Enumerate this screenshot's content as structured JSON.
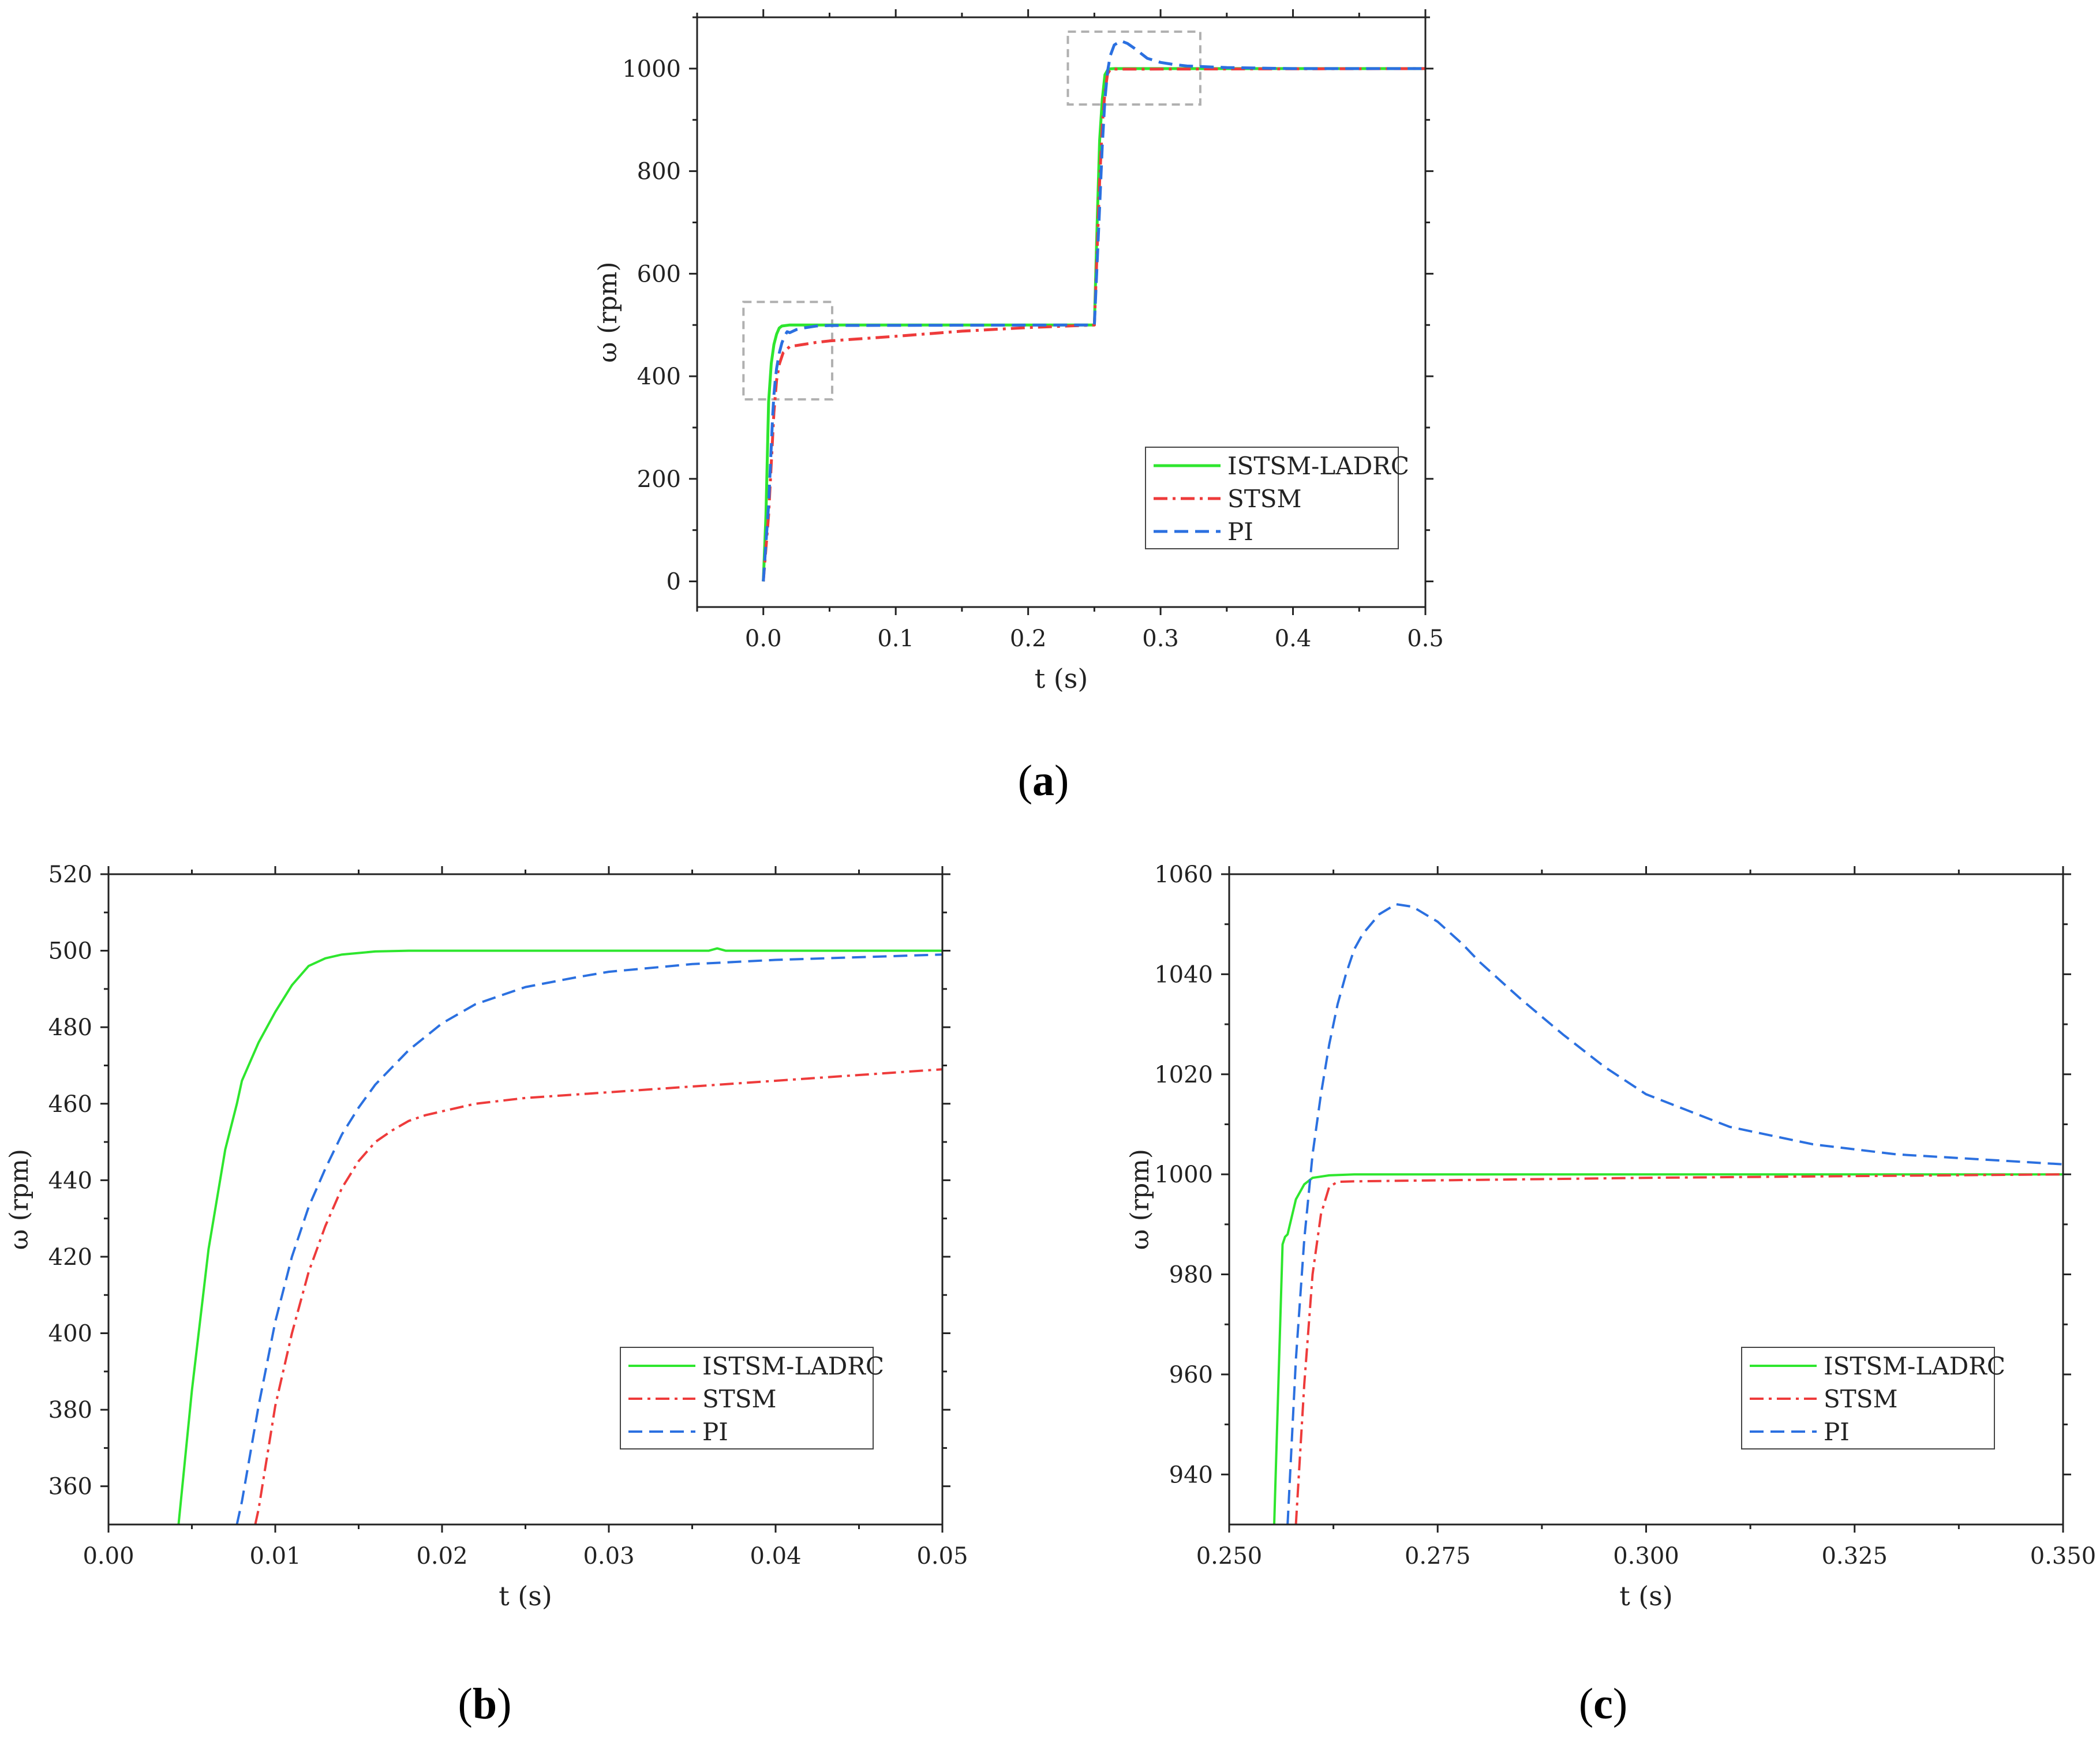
{
  "figure": {
    "captions": [
      {
        "letter": "a",
        "open": "(",
        "close": ")"
      },
      {
        "letter": "b",
        "open": "(",
        "close": ")"
      },
      {
        "letter": "c",
        "open": "(",
        "close": ")"
      }
    ]
  },
  "colors": {
    "ISTSM-LADRC": "#2EE62E",
    "STSM": "#EE3B3B",
    "PI": "#2B70E0",
    "axis": "#222222",
    "zoom_box": "#B0B0B0"
  },
  "chart_data": [
    {
      "id": "a",
      "type": "line",
      "title": "",
      "xlabel": "t (s)",
      "ylabel": "ω (rpm)",
      "xlim": [
        -0.05,
        0.5
      ],
      "ylim": [
        -50,
        1100
      ],
      "xticks": [
        0.0,
        0.1,
        0.2,
        0.3,
        0.4,
        0.5
      ],
      "xtick_labels": [
        "0.0",
        "0.1",
        "0.2",
        "0.3",
        "0.4",
        "0.5"
      ],
      "yticks": [
        0,
        200,
        400,
        600,
        800,
        1000
      ],
      "ytick_labels": [
        "0",
        "200",
        "400",
        "600",
        "800",
        "1000"
      ],
      "legend": {
        "placement": "lower-right",
        "entries": [
          "ISTSM-LADRC",
          "STSM",
          "PI"
        ]
      },
      "zoom_boxes": [
        {
          "x": [
            -0.015,
            0.052
          ],
          "y": [
            355,
            545
          ]
        },
        {
          "x": [
            0.23,
            0.33
          ],
          "y": [
            930,
            1072
          ]
        }
      ],
      "series": [
        {
          "name": "ISTSM-LADRC",
          "style": "solid",
          "x": [
            0,
            0.002,
            0.004,
            0.006,
            0.008,
            0.01,
            0.012,
            0.014,
            0.02,
            0.25,
            0.252,
            0.254,
            0.256,
            0.258,
            0.26,
            0.262,
            0.265,
            0.5
          ],
          "y": [
            0,
            130,
            350,
            425,
            462,
            482,
            494,
            498,
            500,
            500,
            690,
            860,
            940,
            988,
            997,
            999.5,
            1000,
            1000
          ]
        },
        {
          "name": "STSM",
          "style": "dashdot",
          "x": [
            0,
            0.004,
            0.008,
            0.01,
            0.012,
            0.015,
            0.02,
            0.025,
            0.03,
            0.04,
            0.05,
            0.1,
            0.15,
            0.2,
            0.25,
            0.252,
            0.254,
            0.256,
            0.258,
            0.26,
            0.262,
            0.265,
            0.5
          ],
          "y": [
            0,
            130,
            330,
            392,
            423,
            446,
            458,
            460,
            462,
            466,
            469,
            478,
            488,
            495,
            500,
            640,
            780,
            890,
            955,
            990,
            998,
            999,
            1000
          ]
        },
        {
          "name": "PI",
          "style": "dashed",
          "x": [
            0,
            0.004,
            0.007,
            0.008,
            0.009,
            0.01,
            0.012,
            0.014,
            0.016,
            0.018,
            0.02,
            0.025,
            0.03,
            0.035,
            0.04,
            0.05,
            0.25,
            0.254,
            0.256,
            0.258,
            0.26,
            0.262,
            0.265,
            0.27,
            0.275,
            0.28,
            0.29,
            0.3,
            0.31,
            0.32,
            0.33,
            0.34,
            0.35,
            0.4,
            0.5
          ],
          "y": [
            0,
            150,
            320,
            364,
            392,
            415,
            445,
            465,
            478,
            487,
            485,
            491,
            494,
            496,
            498,
            499,
            500,
            730,
            850,
            940,
            995,
            1025,
            1046,
            1054,
            1049,
            1040,
            1020,
            1012,
            1008,
            1005,
            1004,
            1003,
            1002,
            1000,
            1000
          ]
        }
      ]
    },
    {
      "id": "b",
      "type": "line",
      "title": "",
      "xlabel": "t (s)",
      "ylabel": "ω (rpm)",
      "xlim": [
        0.0,
        0.05
      ],
      "ylim": [
        350,
        520
      ],
      "xticks": [
        0.0,
        0.01,
        0.02,
        0.03,
        0.04,
        0.05
      ],
      "xtick_labels": [
        "0.00",
        "0.01",
        "0.02",
        "0.03",
        "0.04",
        "0.05"
      ],
      "yticks": [
        360,
        380,
        400,
        420,
        440,
        460,
        480,
        500,
        520
      ],
      "ytick_labels": [
        "360",
        "380",
        "400",
        "420",
        "440",
        "460",
        "480",
        "500",
        "520"
      ],
      "legend": {
        "placement": "lower-right",
        "entries": [
          "ISTSM-LADRC",
          "STSM",
          "PI"
        ]
      },
      "series": [
        {
          "name": "ISTSM-LADRC",
          "style": "solid",
          "x": [
            0.0042,
            0.005,
            0.006,
            0.007,
            0.0077,
            0.008,
            0.009,
            0.01,
            0.011,
            0.012,
            0.013,
            0.014,
            0.016,
            0.018,
            0.02,
            0.03,
            0.036,
            0.0365,
            0.037,
            0.04,
            0.05
          ],
          "y": [
            350,
            385,
            422,
            448,
            460,
            466,
            476,
            484,
            491,
            496,
            498,
            499,
            499.8,
            500,
            500,
            500,
            500,
            500.6,
            500,
            500,
            500
          ]
        },
        {
          "name": "STSM",
          "style": "dashdot",
          "x": [
            0.0088,
            0.009,
            0.01,
            0.011,
            0.012,
            0.013,
            0.014,
            0.015,
            0.016,
            0.017,
            0.018,
            0.019,
            0.02,
            0.022,
            0.025,
            0.03,
            0.035,
            0.04,
            0.045,
            0.05
          ],
          "y": [
            350,
            354,
            381,
            400,
            416,
            428,
            438,
            445,
            450,
            453,
            455.5,
            457,
            458,
            460,
            461.5,
            463,
            464.5,
            466,
            467.5,
            469
          ]
        },
        {
          "name": "PI",
          "style": "dashed",
          "x": [
            0.0077,
            0.008,
            0.009,
            0.01,
            0.011,
            0.012,
            0.013,
            0.014,
            0.015,
            0.016,
            0.018,
            0.02,
            0.022,
            0.025,
            0.028,
            0.03,
            0.035,
            0.04,
            0.045,
            0.05
          ],
          "y": [
            350,
            356,
            381,
            403,
            420,
            433,
            443,
            452,
            459,
            465,
            474,
            481,
            486,
            490.5,
            493,
            494.5,
            496.5,
            497.6,
            498.3,
            499
          ]
        }
      ]
    },
    {
      "id": "c",
      "type": "line",
      "title": "",
      "xlabel": "t (s)",
      "ylabel": "ω (rpm)",
      "xlim": [
        0.25,
        0.35
      ],
      "ylim": [
        930,
        1060
      ],
      "xticks": [
        0.25,
        0.275,
        0.3,
        0.325,
        0.35
      ],
      "xtick_labels": [
        "0.250",
        "0.275",
        "0.300",
        "0.325",
        "0.350"
      ],
      "yticks": [
        940,
        960,
        980,
        1000,
        1020,
        1040,
        1060
      ],
      "ytick_labels": [
        "940",
        "960",
        "980",
        "1000",
        "1020",
        "1040",
        "1060"
      ],
      "legend": {
        "placement": "lower-right",
        "entries": [
          "ISTSM-LADRC",
          "STSM",
          "PI"
        ]
      },
      "series": [
        {
          "name": "ISTSM-LADRC",
          "style": "solid",
          "x": [
            0.2554,
            0.2564,
            0.2567,
            0.257,
            0.258,
            0.259,
            0.26,
            0.262,
            0.265,
            0.27,
            0.3,
            0.35
          ],
          "y": [
            930,
            986,
            987.5,
            988,
            995,
            998,
            999.3,
            999.8,
            1000,
            1000,
            1000,
            1000
          ]
        },
        {
          "name": "STSM",
          "style": "dashdot",
          "x": [
            0.258,
            0.259,
            0.26,
            0.261,
            0.262,
            0.263,
            0.265,
            0.27,
            0.28,
            0.29,
            0.3,
            0.35
          ],
          "y": [
            930,
            958,
            980,
            992,
            997.5,
            998.5,
            998.6,
            998.7,
            998.9,
            999.1,
            999.3,
            1000
          ]
        },
        {
          "name": "PI",
          "style": "dashed",
          "x": [
            0.257,
            0.258,
            0.259,
            0.26,
            0.261,
            0.262,
            0.263,
            0.264,
            0.265,
            0.266,
            0.268,
            0.27,
            0.272,
            0.275,
            0.278,
            0.28,
            0.285,
            0.29,
            0.295,
            0.3,
            0.31,
            0.32,
            0.33,
            0.34,
            0.35
          ],
          "y": [
            930,
            963,
            987,
            1004,
            1016,
            1026,
            1034,
            1040,
            1045,
            1048,
            1052,
            1054,
            1053.5,
            1050.5,
            1046,
            1042.5,
            1035,
            1028,
            1021.5,
            1016,
            1009.5,
            1006,
            1004,
            1003,
            1002
          ]
        }
      ]
    }
  ]
}
